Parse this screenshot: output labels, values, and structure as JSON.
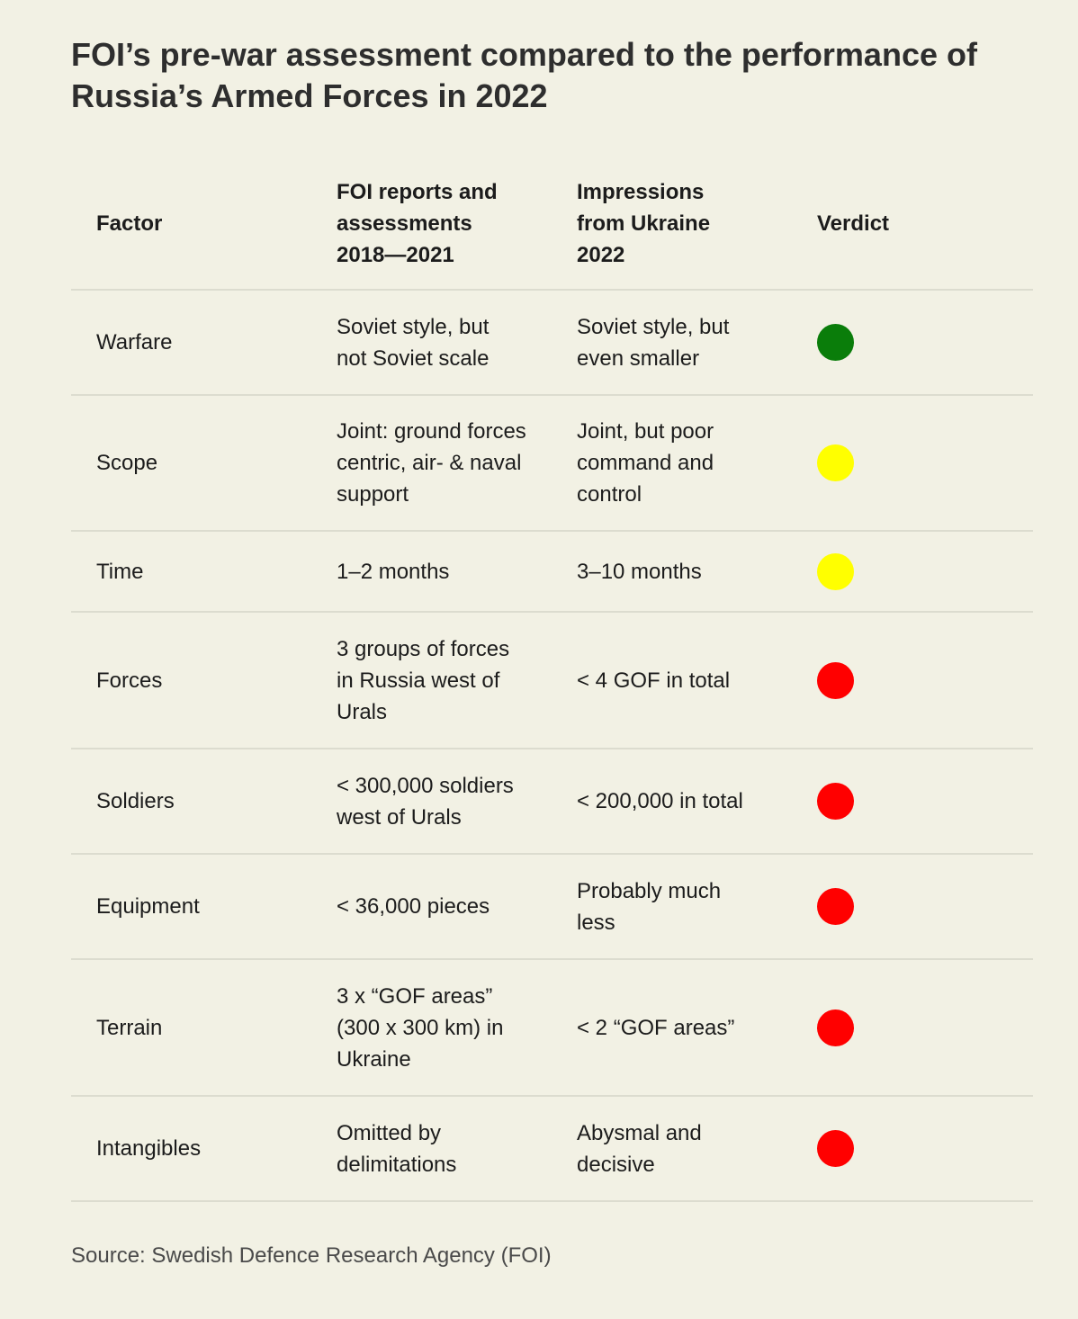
{
  "title": "FOI’s pre-war assessment compared to the performance of Russia’s Armed Forces in 2022",
  "headers": {
    "factor": "Factor",
    "foi": "FOI reports and assessments 2018—2021",
    "ukraine": "Impressions from Ukraine 2022",
    "verdict": "Verdict"
  },
  "rows": [
    {
      "factor": "Warfare",
      "foi": "Soviet style, but not Soviet scale",
      "ukraine": "Soviet style, but even smaller",
      "verdict": "green"
    },
    {
      "factor": "Scope",
      "foi": "Joint: ground forces centric, air- & naval support",
      "ukraine": "Joint, but poor command and control",
      "verdict": "yellow"
    },
    {
      "factor": "Time",
      "foi": "1–2 months",
      "ukraine": "3–10 months",
      "verdict": "yellow"
    },
    {
      "factor": "Forces",
      "foi": "3 groups of forces in Russia west of Urals",
      "ukraine": "< 4 GOF in total",
      "verdict": "red"
    },
    {
      "factor": "Soldiers",
      "foi": "< 300,000 soldiers west of Urals",
      "ukraine": "< 200,000 in total",
      "verdict": "red"
    },
    {
      "factor": "Equipment",
      "foi": "< 36,000 pieces",
      "ukraine": "Probably much less",
      "verdict": "red"
    },
    {
      "factor": "Terrain",
      "foi": "3 x “GOF areas” (300 x 300 km) in Ukraine",
      "ukraine": "< 2 “GOF areas”",
      "verdict": "red"
    },
    {
      "factor": "Intangibles",
      "foi": "Omitted by delimitations",
      "ukraine": "Abysmal and decisive",
      "verdict": "red"
    }
  ],
  "verdict_colors": {
    "green": "#0a7d0a",
    "yellow": "#ffff00",
    "red": "#ff0000"
  },
  "source": "Source: Swedish Defence Research Agency (FOI)"
}
